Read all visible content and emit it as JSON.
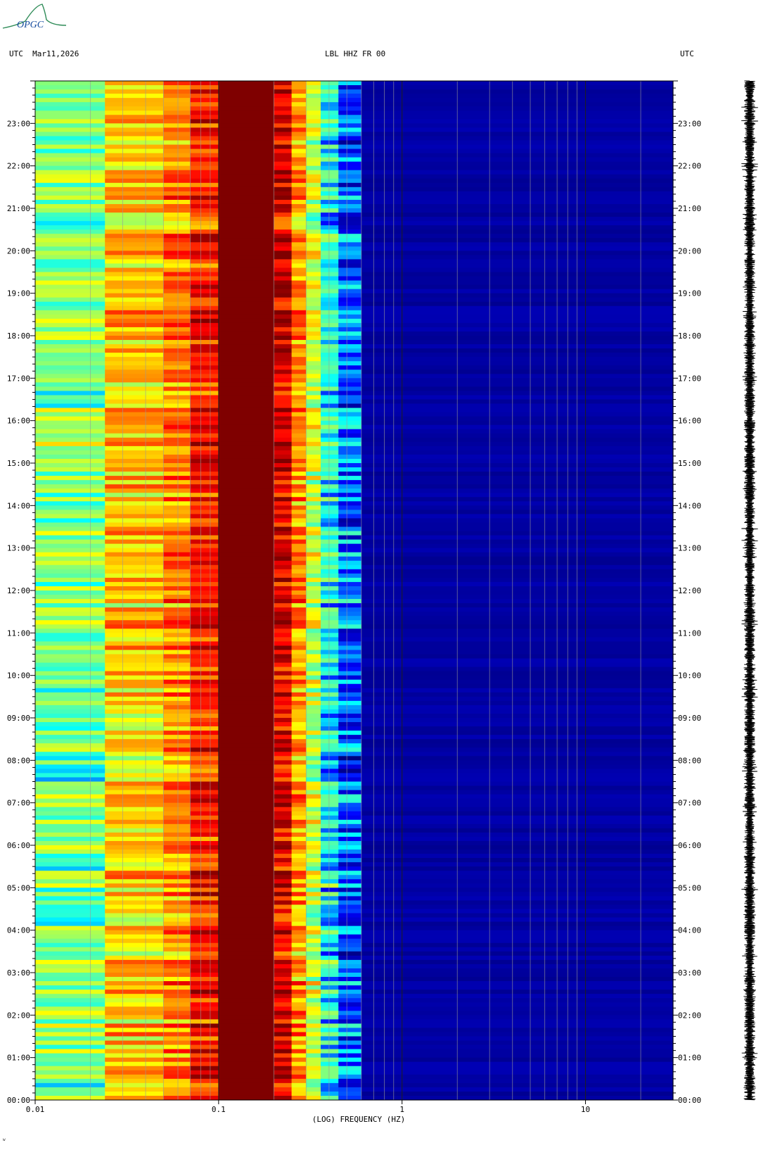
{
  "header": {
    "utc_left": "UTC",
    "date": "Mar11,2026",
    "station": "LBL HHZ FR 00",
    "utc_right": "UTC"
  },
  "logo": {
    "text": "OPGC",
    "color": "#2e8b57"
  },
  "footer": {
    "mark": "w"
  },
  "chart_data": {
    "type": "heatmap",
    "title": "LBL HHZ FR 00",
    "xlabel": "(LOG) FREQUENCY (HZ)",
    "ylabel": "UTC",
    "x_scale": "log",
    "xlim": [
      0.01,
      30
    ],
    "ylim_hours": [
      0,
      24
    ],
    "x_tick_labels": [
      "0.01",
      "0.1",
      "1",
      "10"
    ],
    "x_tick_values": [
      0.01,
      0.1,
      1,
      10
    ],
    "y_tick_labels": [
      "00:00",
      "01:00",
      "02:00",
      "03:00",
      "04:00",
      "05:00",
      "06:00",
      "07:00",
      "08:00",
      "09:00",
      "10:00",
      "11:00",
      "12:00",
      "13:00",
      "14:00",
      "15:00",
      "16:00",
      "17:00",
      "18:00",
      "19:00",
      "20:00",
      "21:00",
      "22:00",
      "23:00"
    ],
    "y_tick_values": [
      0,
      1,
      2,
      3,
      4,
      5,
      6,
      7,
      8,
      9,
      10,
      11,
      12,
      13,
      14,
      15,
      16,
      17,
      18,
      19,
      20,
      21,
      22,
      23
    ],
    "gridlines_x": [
      0.02,
      0.03,
      0.04,
      0.05,
      0.06,
      0.07,
      0.08,
      0.09,
      0.2,
      0.3,
      0.4,
      0.5,
      0.6,
      0.7,
      0.8,
      0.9,
      2,
      3,
      4,
      5,
      6,
      7,
      8,
      9,
      20
    ],
    "colormap": [
      "#00007f",
      "#0000ff",
      "#00ffff",
      "#7fff7f",
      "#ffff00",
      "#ff7f00",
      "#ff0000",
      "#7f0000"
    ],
    "frequency_bands": [
      {
        "f_min": 0.01,
        "f_max": 0.024,
        "level": 0.42
      },
      {
        "f_min": 0.024,
        "f_max": 0.05,
        "level": 0.62
      },
      {
        "f_min": 0.05,
        "f_max": 0.07,
        "level": 0.7
      },
      {
        "f_min": 0.07,
        "f_max": 0.1,
        "level": 0.82
      },
      {
        "f_min": 0.1,
        "f_max": 0.2,
        "level": 1.0
      },
      {
        "f_min": 0.2,
        "f_max": 0.25,
        "level": 0.88
      },
      {
        "f_min": 0.25,
        "f_max": 0.3,
        "level": 0.68
      },
      {
        "f_min": 0.3,
        "f_max": 0.36,
        "level": 0.5
      },
      {
        "f_min": 0.36,
        "f_max": 0.45,
        "level": 0.32
      },
      {
        "f_min": 0.45,
        "f_max": 0.6,
        "level": 0.18
      },
      {
        "f_min": 0.6,
        "f_max": 30,
        "level": 0.04
      }
    ],
    "seismogram_label": ""
  }
}
